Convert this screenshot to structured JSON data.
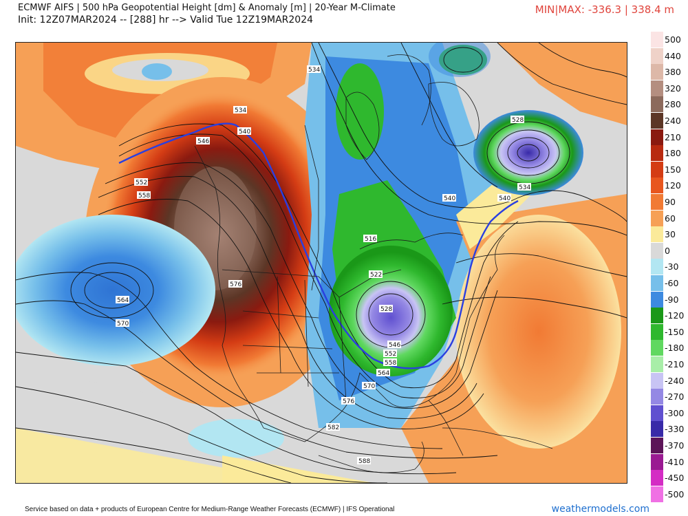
{
  "header": {
    "title": "ECMWF AIFS | 500 hPa Geopotential Height [dm] & Anomaly [m] | 20-Year M-Climate",
    "init": "Init: 12Z07MAR2024 -- [288] hr --> Valid Tue 12Z19MAR2024",
    "minmax": "MIN|MAX: -336.3 | 338.4 m"
  },
  "legend": [
    {
      "label": "500",
      "color": "#fbe4e4"
    },
    {
      "label": "440",
      "color": "#efd2c8"
    },
    {
      "label": "380",
      "color": "#ddb8a8"
    },
    {
      "label": "320",
      "color": "#b48e80"
    },
    {
      "label": "280",
      "color": "#8c6a5c"
    },
    {
      "label": "240",
      "color": "#5c3626"
    },
    {
      "label": "210",
      "color": "#8a1a10"
    },
    {
      "label": "180",
      "color": "#b82a10"
    },
    {
      "label": "150",
      "color": "#d43c14"
    },
    {
      "label": "120",
      "color": "#e8561e"
    },
    {
      "label": "90",
      "color": "#f17a34"
    },
    {
      "label": "60",
      "color": "#f6a056"
    },
    {
      "label": "30",
      "color": "#fbea9a"
    },
    {
      "label": "0",
      "color": "#d9d9d9"
    },
    {
      "label": "-30",
      "color": "#b2e6f2"
    },
    {
      "label": "-60",
      "color": "#76bfea"
    },
    {
      "label": "-90",
      "color": "#3d8ae0"
    },
    {
      "label": "-120",
      "color": "#1a9818"
    },
    {
      "label": "-150",
      "color": "#2fb82e"
    },
    {
      "label": "-180",
      "color": "#60d860"
    },
    {
      "label": "-210",
      "color": "#a8eea8"
    },
    {
      "label": "-240",
      "color": "#c8c4f4"
    },
    {
      "label": "-270",
      "color": "#9488e4"
    },
    {
      "label": "-300",
      "color": "#6050d0"
    },
    {
      "label": "-330",
      "color": "#382aa8"
    },
    {
      "label": "-370",
      "color": "#5c1458"
    },
    {
      "label": "-410",
      "color": "#9a1a92"
    },
    {
      "label": "-450",
      "color": "#d42cc4"
    },
    {
      "label": "-500",
      "color": "#f070e4"
    }
  ],
  "map": {
    "contour_labels": [
      "534",
      "540",
      "546",
      "552",
      "558",
      "564",
      "570",
      "576",
      "582",
      "588",
      "516",
      "522",
      "528",
      "534",
      "540",
      "546",
      "552",
      "558",
      "564",
      "570",
      "576",
      "528",
      "534",
      "540",
      "582"
    ]
  },
  "footer": {
    "credit": "Service based on data + products of European Centre for Medium-Range Weather Forecasts (ECMWF) | IFS Operational",
    "brand": "weathermodels.com"
  }
}
